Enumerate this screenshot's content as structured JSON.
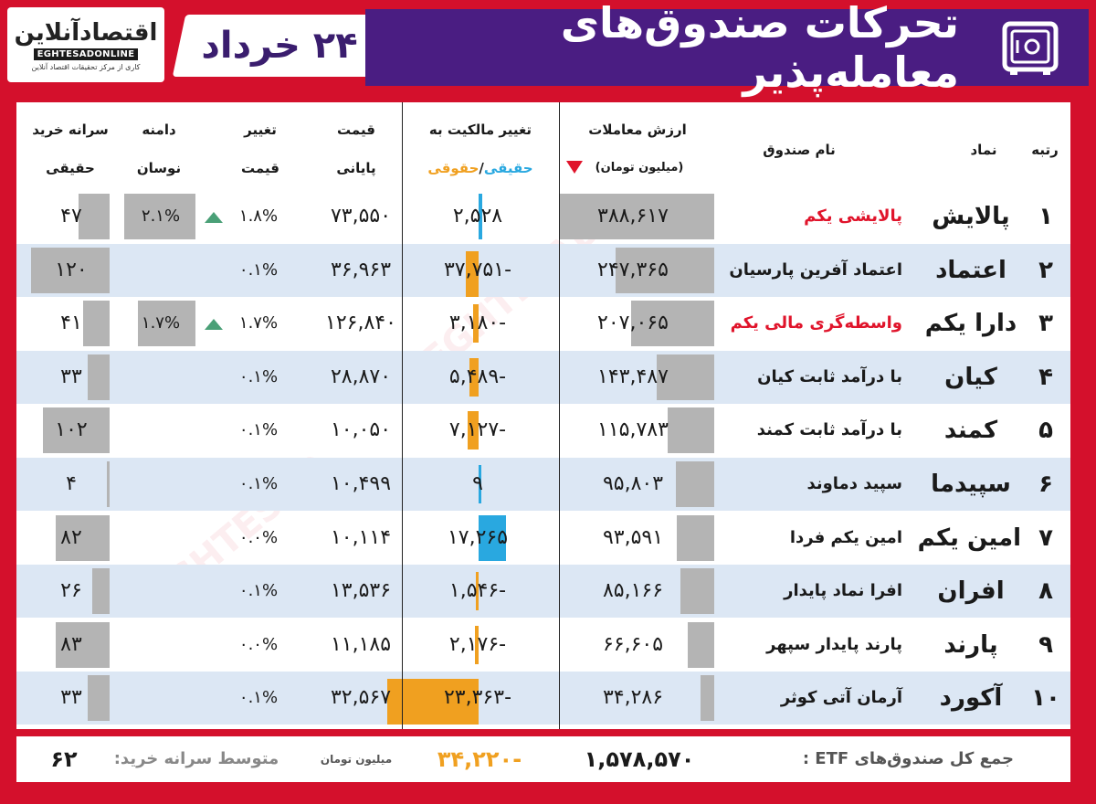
{
  "brand": {
    "logo_text": "اقتصادآنلاین",
    "logo_en": "EGHTESADONLINE",
    "logo_tagline": "کاری از مرکز تحقیقات اقتصاد آنلاین"
  },
  "header": {
    "title": "تحرکات صندوق‌های معامله‌پذیر",
    "date": "۲۴ خرداد",
    "icon": "safe-icon",
    "accent_purple": "#4a1d82",
    "brand_red": "#d4102c"
  },
  "columns": {
    "rank": "رتبه",
    "symbol": "نماد",
    "fund_name": "نام صندوق",
    "trade_value": "ارزش معاملات",
    "trade_value_unit": "(میلیون تومان)",
    "ownership_change": "تغییر مالکیت به",
    "ownership_sub_real": "حقیقی",
    "ownership_sub_sep": "/",
    "ownership_sub_legal": "حقوقی",
    "close_price_l1": "قیمت",
    "close_price_l2": "پایانی",
    "price_change_l1": "تغییر",
    "price_change_l2": "قیمت",
    "range_l1": "دامنه",
    "range_l2": "نوسان",
    "per_capita_l1": "سرانه خرید",
    "per_capita_l2": "حقیقی"
  },
  "rows": [
    {
      "rank": "۱",
      "symbol": "پالایش",
      "name": "پالایشی یکم",
      "name_red": true,
      "trade_value": "۳۸۸,۶۱۷",
      "trade_value_num": 388617,
      "ownership": "۲,۵۲۸",
      "ownership_num": 2528,
      "close_price": "۷۳,۵۵۰",
      "price_change": "۱.۸%",
      "up": true,
      "range": "۲.۱%",
      "range_num": 2.1,
      "per_capita": "۴۷",
      "per_capita_num": 47
    },
    {
      "rank": "۲",
      "symbol": "اعتماد",
      "name": "اعتماد آفرین پارسیان",
      "name_red": false,
      "trade_value": "۲۴۷,۳۶۵",
      "trade_value_num": 247365,
      "ownership": "-۳۷,۷۵۱",
      "ownership_num": -37751,
      "close_price": "۳۶,۹۶۳",
      "price_change": "۰.۱%",
      "up": false,
      "range": "",
      "range_num": 0,
      "per_capita": "۱۲۰",
      "per_capita_num": 120
    },
    {
      "rank": "۳",
      "symbol": "دارا یکم",
      "name": "واسطه‌گری مالی یکم",
      "name_red": true,
      "trade_value": "۲۰۷,۰۶۵",
      "trade_value_num": 207065,
      "ownership": "-۳,۱۸۰",
      "ownership_num": -3180,
      "close_price": "۱۲۶,۸۴۰",
      "price_change": "۱.۷%",
      "up": true,
      "range": "۱.۷%",
      "range_num": 1.7,
      "per_capita": "۴۱",
      "per_capita_num": 41
    },
    {
      "rank": "۴",
      "symbol": "کیان",
      "name": "با درآمد ثابت کیان",
      "name_red": false,
      "trade_value": "۱۴۳,۴۸۷",
      "trade_value_num": 143487,
      "ownership": "-۵,۴۸۹",
      "ownership_num": -5489,
      "close_price": "۲۸,۸۷۰",
      "price_change": "۰.۱%",
      "up": false,
      "range": "",
      "range_num": 0,
      "per_capita": "۳۳",
      "per_capita_num": 33
    },
    {
      "rank": "۵",
      "symbol": "کمند",
      "name": "با درآمد ثابت کمند",
      "name_red": false,
      "trade_value": "۱۱۵,۷۸۳",
      "trade_value_num": 115783,
      "ownership": "-۷,۱۲۷",
      "ownership_num": -7127,
      "close_price": "۱۰,۰۵۰",
      "price_change": "۰.۱%",
      "up": false,
      "range": "",
      "range_num": 0,
      "per_capita": "۱۰۲",
      "per_capita_num": 102
    },
    {
      "rank": "۶",
      "symbol": "سپیدما",
      "name": "سپید دماوند",
      "name_red": false,
      "trade_value": "۹۵,۸۰۳",
      "trade_value_num": 95803,
      "ownership": "۹",
      "ownership_num": 9,
      "close_price": "۱۰,۴۹۹",
      "price_change": "۰.۱%",
      "up": false,
      "range": "",
      "range_num": 0,
      "per_capita": "۴",
      "per_capita_num": 4
    },
    {
      "rank": "۷",
      "symbol": "امین یکم",
      "name": "امین یکم فردا",
      "name_red": false,
      "trade_value": "۹۳,۵۹۱",
      "trade_value_num": 93591,
      "ownership": "۱۷,۲۶۵",
      "ownership_num": 17265,
      "close_price": "۱۰,۱۱۴",
      "price_change": "۰.۰%",
      "up": false,
      "range": "",
      "range_num": 0,
      "per_capita": "۸۲",
      "per_capita_num": 82
    },
    {
      "rank": "۸",
      "symbol": "افران",
      "name": "افرا نماد پایدار",
      "name_red": false,
      "trade_value": "۸۵,۱۶۶",
      "trade_value_num": 85166,
      "ownership": "-۱,۵۴۶",
      "ownership_num": -1546,
      "close_price": "۱۳,۵۳۶",
      "price_change": "۰.۱%",
      "up": false,
      "range": "",
      "range_num": 0,
      "per_capita": "۲۶",
      "per_capita_num": 26
    },
    {
      "rank": "۹",
      "symbol": "پارند",
      "name": "پارند پایدار سپهر",
      "name_red": false,
      "trade_value": "۶۶,۶۰۵",
      "trade_value_num": 66605,
      "ownership": "-۲,۱۷۶",
      "ownership_num": -2176,
      "close_price": "۱۱,۱۸۵",
      "price_change": "۰.۰%",
      "up": false,
      "range": "",
      "range_num": 0,
      "per_capita": "۸۳",
      "per_capita_num": 83
    },
    {
      "rank": "۱۰",
      "symbol": "آکورد",
      "name": "آرمان آتی کوثر",
      "name_red": false,
      "trade_value": "۳۴,۲۸۶",
      "trade_value_num": 34286,
      "ownership": "-۲۳,۳۶۳",
      "ownership_num": -23363,
      "close_price": "۳۲,۵۶۷",
      "price_change": "۰.۱%",
      "up": false,
      "range": "",
      "range_num": 0,
      "per_capita": "۳۳",
      "per_capita_num": 33
    }
  ],
  "footer": {
    "total_label": "جمع کل صندوق‌های ETF :",
    "total_value": "۱,۵۷۸,۵۷۰",
    "ownership_total": "-۳۴,۲۲۰",
    "unit": "میلیون تومان",
    "avg_label": "متوسط سرانه خرید:",
    "avg_value": "۶۲"
  },
  "colors": {
    "real_bar": "#29a8e0",
    "legal_bar": "#f0a020",
    "gray_bar": "#b4b4b4",
    "down_arrow": "#e0142b",
    "up_triangle": "#4aa077"
  }
}
